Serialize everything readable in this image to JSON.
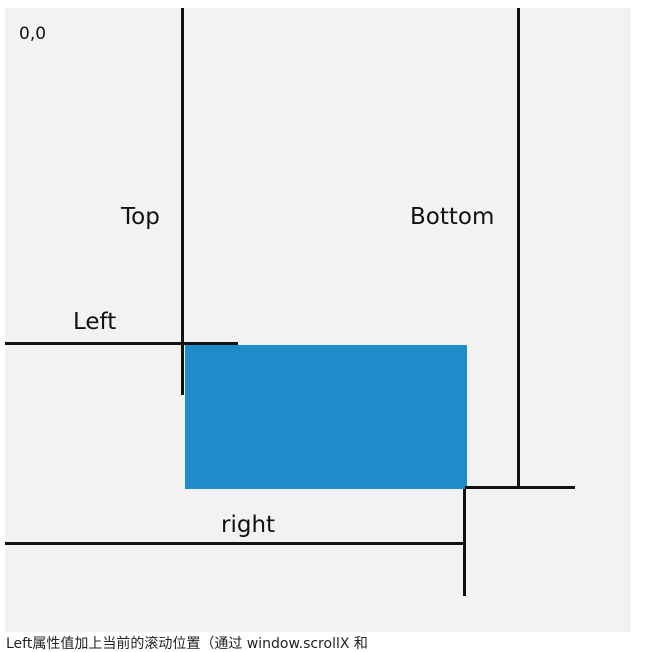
{
  "diagram": {
    "origin_label": "0,0",
    "top_label": "Top",
    "bottom_label": "Bottom",
    "left_label": "Left",
    "right_label": "right",
    "box_color": "#1e8bcb"
  },
  "caption": {
    "text": "Left属性值加上当前的滚动位置（通过 window.scrollX 和"
  }
}
